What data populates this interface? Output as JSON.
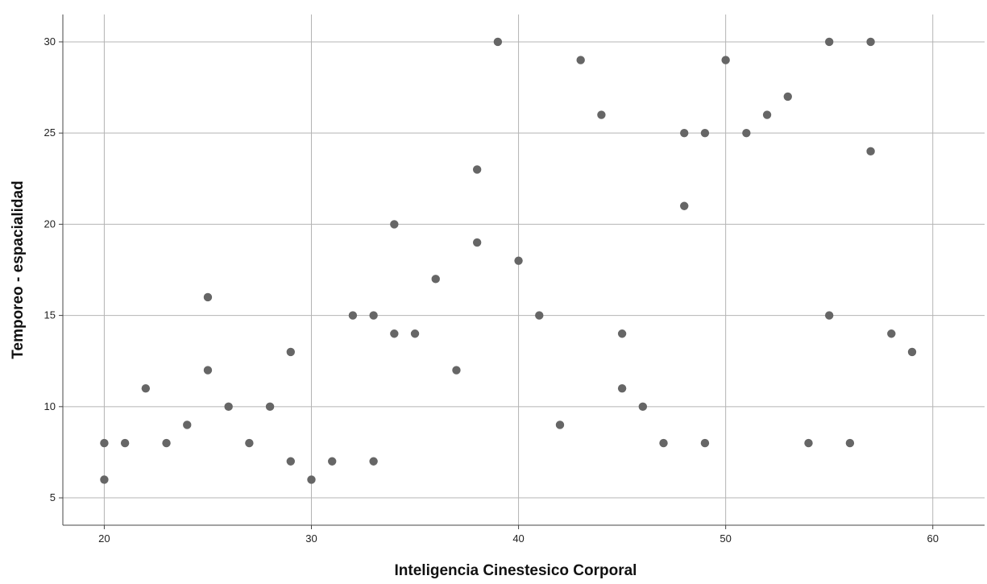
{
  "chart_data": {
    "type": "scatter",
    "xlabel": "Inteligencia Cinestesico Corporal",
    "ylabel": "Temporeo - espacialidad",
    "xlim": [
      18,
      62.5
    ],
    "ylim": [
      3.5,
      31.5
    ],
    "xticks": [
      20,
      30,
      40,
      50,
      60
    ],
    "yticks": [
      5,
      10,
      15,
      20,
      25,
      30
    ],
    "grid": true,
    "legend": "none",
    "point_color": "#666666",
    "points": [
      {
        "x": 20,
        "y": 8
      },
      {
        "x": 20,
        "y": 6
      },
      {
        "x": 21,
        "y": 8
      },
      {
        "x": 22,
        "y": 11
      },
      {
        "x": 23,
        "y": 8
      },
      {
        "x": 24,
        "y": 9
      },
      {
        "x": 25,
        "y": 16
      },
      {
        "x": 25,
        "y": 12
      },
      {
        "x": 26,
        "y": 10
      },
      {
        "x": 27,
        "y": 8
      },
      {
        "x": 28,
        "y": 10
      },
      {
        "x": 29,
        "y": 13
      },
      {
        "x": 29,
        "y": 7
      },
      {
        "x": 30,
        "y": 6
      },
      {
        "x": 31,
        "y": 7
      },
      {
        "x": 32,
        "y": 15
      },
      {
        "x": 33,
        "y": 15
      },
      {
        "x": 33,
        "y": 7
      },
      {
        "x": 34,
        "y": 20
      },
      {
        "x": 34,
        "y": 14
      },
      {
        "x": 35,
        "y": 14
      },
      {
        "x": 36,
        "y": 17
      },
      {
        "x": 37,
        "y": 12
      },
      {
        "x": 38,
        "y": 23
      },
      {
        "x": 38,
        "y": 19
      },
      {
        "x": 39,
        "y": 30
      },
      {
        "x": 40,
        "y": 18
      },
      {
        "x": 41,
        "y": 15
      },
      {
        "x": 42,
        "y": 9
      },
      {
        "x": 43,
        "y": 29
      },
      {
        "x": 44,
        "y": 26
      },
      {
        "x": 45,
        "y": 14
      },
      {
        "x": 45,
        "y": 11
      },
      {
        "x": 46,
        "y": 10
      },
      {
        "x": 47,
        "y": 8
      },
      {
        "x": 48,
        "y": 25
      },
      {
        "x": 48,
        "y": 21
      },
      {
        "x": 49,
        "y": 25
      },
      {
        "x": 49,
        "y": 8
      },
      {
        "x": 50,
        "y": 29
      },
      {
        "x": 51,
        "y": 25
      },
      {
        "x": 52,
        "y": 26
      },
      {
        "x": 53,
        "y": 27
      },
      {
        "x": 54,
        "y": 8
      },
      {
        "x": 55,
        "y": 30
      },
      {
        "x": 55,
        "y": 15
      },
      {
        "x": 56,
        "y": 8
      },
      {
        "x": 57,
        "y": 30
      },
      {
        "x": 57,
        "y": 24
      },
      {
        "x": 58,
        "y": 14
      },
      {
        "x": 59,
        "y": 13
      }
    ]
  }
}
